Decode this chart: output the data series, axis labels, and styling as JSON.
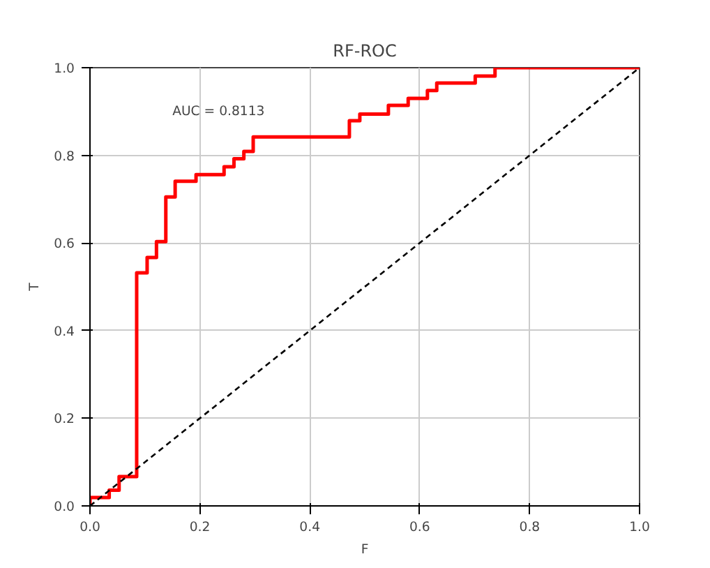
{
  "chart_data": {
    "type": "step",
    "title": "RF-ROC",
    "xlabel": "F",
    "ylabel": "T",
    "annotations": [
      "AUC = 0.8113"
    ],
    "series": [
      {
        "color": "#ff0000",
        "x": [
          0,
          0,
          0.035,
          0.053,
          0.085,
          0.104,
          0.121,
          0.138,
          0.155,
          0.193,
          0.244,
          0.262,
          0.28,
          0.297,
          0.472,
          0.491,
          0.543,
          0.579,
          0.614,
          0.631,
          0.701,
          0.737,
          1.0
        ],
        "values": [
          0,
          0.019,
          0.036,
          0.067,
          0.532,
          0.567,
          0.603,
          0.705,
          0.741,
          0.756,
          0.774,
          0.792,
          0.809,
          0.842,
          0.879,
          0.894,
          0.914,
          0.93,
          0.948,
          0.965,
          0.981,
          1.0,
          1.0
        ]
      },
      {
        "type": "line",
        "color": "#000000",
        "line_style": "dashed",
        "x": [
          0,
          1
        ],
        "values": [
          0,
          1
        ]
      }
    ],
    "xlim": [
      0,
      1
    ],
    "ylim": [
      0,
      1
    ],
    "xticks": [
      {
        "value": 0,
        "label": "0.0"
      },
      0.2,
      0.4,
      0.6,
      0.8,
      {
        "value": 1,
        "label": "1.0"
      }
    ],
    "yticks": [
      {
        "value": 0,
        "label": "0.0"
      },
      0.2,
      0.4,
      0.6,
      0.8,
      {
        "value": 1,
        "label": "1.0"
      }
    ],
    "grid": true
  }
}
